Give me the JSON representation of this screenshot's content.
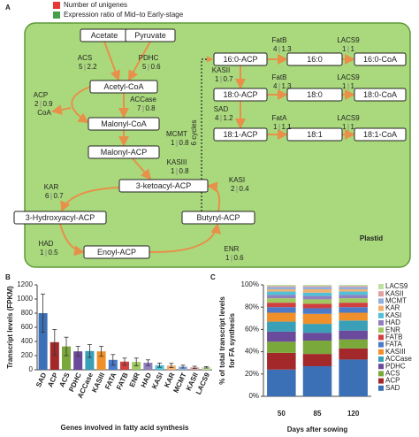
{
  "panel_labels": [
    "A",
    "B",
    "C"
  ],
  "legend": [
    {
      "label": "Number of unigenes",
      "color": "#e53935"
    },
    {
      "label": "Expression ratio of Mid–to Early-stage",
      "color": "#43a047"
    }
  ],
  "compartment": "Plastid",
  "cycles_label": "6 cycles",
  "coa_label": "CoA",
  "nodes": [
    "Acetate",
    "Pyruvate",
    "Acetyl-CoA",
    "Malonyl-CoA",
    "Malonyl-ACP",
    "3-ketoacyl-ACP",
    "3-Hydroxyacyl-ACP",
    "Enoyl-ACP",
    "Butyryl-ACP",
    "16:0-ACP",
    "16:0",
    "16:0-CoA",
    "18:0-ACP",
    "18:0",
    "18:0-CoA",
    "18:1-ACP",
    "18:1",
    "18:1-CoA"
  ],
  "enzymes": [
    {
      "name": "ACS",
      "unigenes": 5,
      "ratio": 2.2
    },
    {
      "name": "PDHC",
      "unigenes": 5,
      "ratio": 0.6
    },
    {
      "name": "ACP",
      "unigenes": 2,
      "ratio": 0.9
    },
    {
      "name": "ACCase",
      "unigenes": 7,
      "ratio": 0.8
    },
    {
      "name": "MCMT",
      "unigenes": 1,
      "ratio": 0.8
    },
    {
      "name": "KASIII",
      "unigenes": 1,
      "ratio": 0.8
    },
    {
      "name": "KAR",
      "unigenes": 6,
      "ratio": 0.7
    },
    {
      "name": "KASI",
      "unigenes": 2,
      "ratio": 0.4
    },
    {
      "name": "HAD",
      "unigenes": 1,
      "ratio": 0.5
    },
    {
      "name": "ENR",
      "unigenes": 1,
      "ratio": 0.6
    },
    {
      "name": "FatB",
      "unigenes": 4,
      "ratio": 1.3
    },
    {
      "name": "LACS9",
      "unigenes": 1,
      "ratio": 1.0
    },
    {
      "name": "KASII",
      "unigenes": 1,
      "ratio": 0.7
    },
    {
      "name": "FatB",
      "unigenes": 4,
      "ratio": 1.3
    },
    {
      "name": "LACS9",
      "unigenes": 1,
      "ratio": 1.0
    },
    {
      "name": "SAD",
      "unigenes": 4,
      "ratio": 1.2
    },
    {
      "name": "FatA",
      "unigenes": 1,
      "ratio": 1.1
    },
    {
      "name": "LACS9",
      "unigenes": 1,
      "ratio": 1.0
    }
  ],
  "chart_data": [
    {
      "type": "bar",
      "ylabel": "Transcript levels (FPKM)",
      "xlabel": "Genes involved in fatty acid synthesis",
      "categories": [
        "SAD",
        "ACP",
        "ACS",
        "PDHC",
        "ACCase",
        "KASIII",
        "FATA",
        "FATB",
        "ENR",
        "HAD",
        "KASI",
        "KAR",
        "MCMT",
        "KASII",
        "LACS9"
      ],
      "values": [
        800,
        390,
        330,
        260,
        265,
        260,
        140,
        115,
        110,
        100,
        65,
        60,
        45,
        35,
        35
      ],
      "errors": [
        270,
        180,
        130,
        70,
        90,
        70,
        75,
        50,
        55,
        40,
        30,
        30,
        20,
        15,
        10
      ],
      "colors": [
        "#3b6fb6",
        "#a3282a",
        "#7aa83a",
        "#6a4a9a",
        "#3aa0b8",
        "#f0902a",
        "#4a7ac8",
        "#d04040",
        "#a0c860",
        "#9080c0",
        "#50c0d8",
        "#f0b070",
        "#90b0e0",
        "#e0a0a0",
        "#c0e0a0"
      ],
      "ylim": [
        0,
        1200
      ],
      "yticks": [
        0,
        200,
        400,
        600,
        800,
        1000,
        1200
      ]
    },
    {
      "type": "stacked_bar",
      "ylabel": [
        "% of total transcript levels",
        "for FA synthesis"
      ],
      "xlabel": "Days after sowing",
      "categories": [
        "50",
        "85",
        "120"
      ],
      "series": [
        {
          "name": "SAD",
          "color": "#3b6fb6",
          "values": [
            24,
            27,
            33
          ]
        },
        {
          "name": "ACP",
          "color": "#a3282a",
          "values": [
            15,
            11,
            10
          ]
        },
        {
          "name": "ACS",
          "color": "#7aa83a",
          "values": [
            10,
            12,
            8
          ]
        },
        {
          "name": "PDHC",
          "color": "#6a4a9a",
          "values": [
            9,
            7,
            8
          ]
        },
        {
          "name": "ACCase",
          "color": "#3aa0b8",
          "values": [
            9,
            8,
            9
          ]
        },
        {
          "name": "KASIII",
          "color": "#f0902a",
          "values": [
            8,
            9,
            7
          ]
        },
        {
          "name": "FATA",
          "color": "#4a7ac8",
          "values": [
            5,
            5,
            5
          ]
        },
        {
          "name": "FATB",
          "color": "#d04040",
          "values": [
            4,
            4,
            4
          ]
        },
        {
          "name": "ENR",
          "color": "#a0c860",
          "values": [
            4,
            4,
            4
          ]
        },
        {
          "name": "HAD",
          "color": "#9080c0",
          "values": [
            3,
            3,
            3
          ]
        },
        {
          "name": "KASI",
          "color": "#50c0d8",
          "values": [
            3,
            3,
            3
          ]
        },
        {
          "name": "KAR",
          "color": "#f0b070",
          "values": [
            2,
            3,
            2
          ]
        },
        {
          "name": "MCMT",
          "color": "#90b0e0",
          "values": [
            2,
            2,
            2
          ]
        },
        {
          "name": "KASII",
          "color": "#e0a0a0",
          "values": [
            1,
            1,
            1
          ]
        },
        {
          "name": "LACS9",
          "color": "#c0e0a0",
          "values": [
            1,
            1,
            1
          ]
        }
      ],
      "ylim": [
        0,
        100
      ],
      "yticks": [
        {
          "value": 0,
          "label": "0%"
        },
        {
          "value": 20,
          "label": "20%"
        },
        {
          "value": 40,
          "label": "40%"
        },
        {
          "value": 60,
          "label": "60%"
        },
        {
          "value": 80,
          "label": "80%"
        },
        {
          "value": 100,
          "label": "100%"
        }
      ]
    }
  ]
}
